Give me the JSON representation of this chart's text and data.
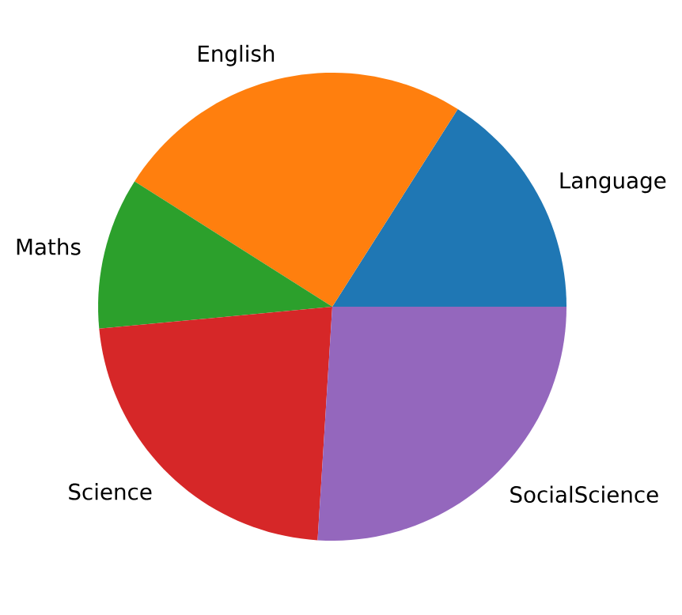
{
  "chart_data": {
    "type": "pie",
    "categories": [
      "Language",
      "English",
      "Maths",
      "Science",
      "SocialScience"
    ],
    "values": [
      16,
      25,
      10.5,
      22.5,
      26
    ],
    "colors": [
      "#1f77b4",
      "#ff7f0e",
      "#2ca02c",
      "#d62728",
      "#9467bd"
    ]
  }
}
